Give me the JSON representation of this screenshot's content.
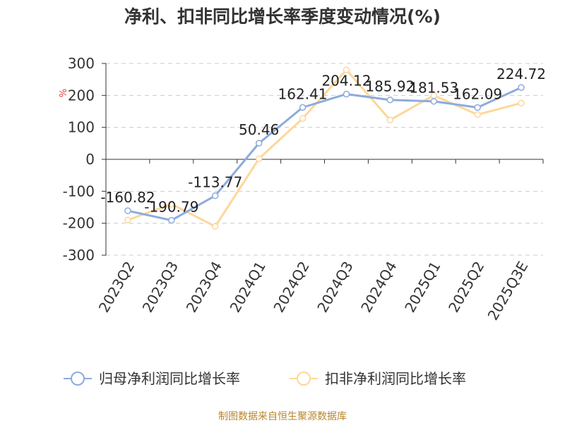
{
  "chart_data": {
    "type": "line",
    "title": "净利、扣非同比增长率季度变动情况(%)",
    "ylabel": "%",
    "ylim": [
      -300,
      300
    ],
    "yticks": [
      300,
      200,
      100,
      0,
      -100,
      -200,
      -300
    ],
    "categories": [
      "2023Q2",
      "2023Q3",
      "2023Q4",
      "2024Q1",
      "2024Q2",
      "2024Q3",
      "2024Q4",
      "2025Q1",
      "2025Q2",
      "2025Q3E"
    ],
    "grid": true,
    "legend_position": "bottom",
    "series": [
      {
        "name": "归母净利润同比增长率",
        "color": "#8dabdc",
        "values": [
          -160.82,
          -190.79,
          -113.77,
          50.46,
          162.41,
          204.12,
          185.92,
          181.53,
          162.09,
          224.72
        ],
        "labels": [
          "-160.82",
          "-190.79",
          "-113.77",
          "50.46",
          "162.41",
          "204.12",
          "185.92",
          "181.53",
          "162.09",
          "224.72"
        ]
      },
      {
        "name": "扣非净利润同比增长率",
        "color": "#fdd79a",
        "values": [
          -190,
          -140,
          -210,
          2,
          128,
          280,
          123,
          200,
          140,
          176
        ]
      }
    ]
  },
  "source": "制图数据来自恒生聚源数据库"
}
